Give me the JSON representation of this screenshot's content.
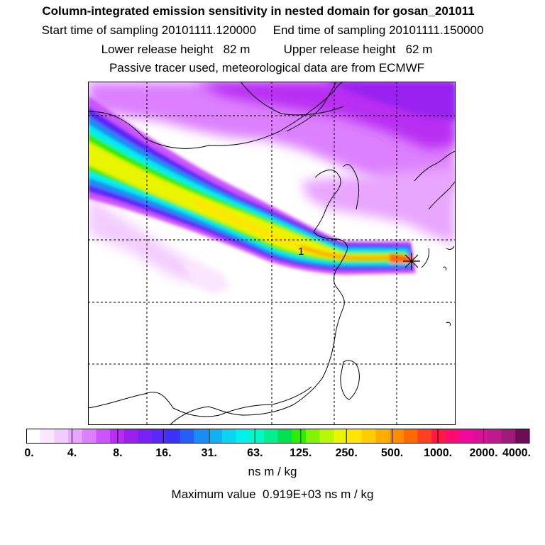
{
  "header": {
    "title": "Column-integrated emission sensitivity in nested domain for gosan_201011",
    "line_sampling": "Start time of sampling 20101111.120000     End time of sampling 20101111.150000",
    "line_heights": "Lower release height   82 m          Upper release height   62 m",
    "line_tracer": "Passive tracer used, meteorological data are from ECMWF"
  },
  "map": {
    "release_marker_label": "1",
    "grid_style": "dashed",
    "plume_direction": "from northwest to receptor at east"
  },
  "colorbar": {
    "tick_labels": [
      "0.",
      "4.",
      "8.",
      "16.",
      "31.",
      "63.",
      "125.",
      "250.",
      "500.",
      "1000.",
      "2000.",
      "4000."
    ],
    "colors": [
      "#ffffff",
      "#fbe6ff",
      "#f3ccff",
      "#e8a6ff",
      "#dc80ff",
      "#cc55ff",
      "#b82df2",
      "#9a20f0",
      "#7a22f5",
      "#5a28f8",
      "#3a32fa",
      "#2460f8",
      "#1a8cf5",
      "#12b0f2",
      "#0ad4f0",
      "#00f0ec",
      "#00f8c8",
      "#00f090",
      "#00e050",
      "#30ec00",
      "#80f400",
      "#b8f800",
      "#e8f400",
      "#ffe600",
      "#ffcc00",
      "#ffae00",
      "#ff8c00",
      "#ff6a00",
      "#ff4020",
      "#ff1840",
      "#ff0a70",
      "#f008a0",
      "#d8109c",
      "#c0188e",
      "#a01a7c",
      "#6e0c58"
    ],
    "units": "ns m / kg"
  },
  "footer": {
    "maximum_value": "Maximum value  0.919E+03 ns m / kg"
  }
}
